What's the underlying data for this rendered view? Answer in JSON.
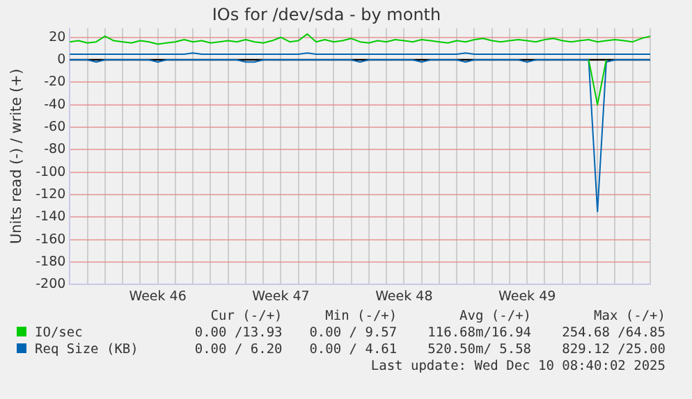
{
  "chart_data": {
    "type": "line",
    "title": "IOs for /dev/sda - by month",
    "ylabel": "Units read (-) / write (+)",
    "categories": [
      null,
      null,
      null,
      null,
      null,
      null,
      null,
      null,
      null,
      null,
      "Week 46",
      null,
      null,
      null,
      null,
      null,
      null,
      null,
      null,
      null,
      null,
      null,
      null,
      null,
      "Week 47",
      null,
      null,
      null,
      null,
      null,
      null,
      null,
      null,
      null,
      null,
      null,
      null,
      null,
      "Week 48",
      null,
      null,
      null,
      null,
      null,
      null,
      null,
      null,
      null,
      null,
      null,
      null,
      null,
      "Week 49",
      null,
      null,
      null,
      null,
      null,
      null,
      null,
      null,
      null,
      null,
      null,
      null,
      null,
      null
    ],
    "series": [
      {
        "name": "IO/sec",
        "color": "#00cc00",
        "values": [
          16,
          17,
          15,
          16,
          21,
          17,
          16,
          15,
          17,
          16,
          14,
          15,
          16,
          18,
          16,
          17,
          15,
          16,
          17,
          16,
          18,
          16,
          15,
          17,
          20,
          16,
          17,
          23,
          16,
          18,
          16,
          17,
          19,
          16,
          15,
          17,
          16,
          18,
          17,
          16,
          18,
          17,
          16,
          15,
          17,
          16,
          18,
          19,
          17,
          16,
          17,
          18,
          17,
          16,
          18,
          19,
          17,
          16,
          17,
          18,
          16,
          17,
          18,
          17,
          16,
          19,
          21
        ]
      },
      {
        "color": "#00cc00",
        "values": [
          null,
          null,
          null,
          null,
          null,
          null,
          null,
          null,
          null,
          null,
          null,
          null,
          null,
          null,
          null,
          null,
          null,
          null,
          null,
          null,
          null,
          null,
          null,
          null,
          null,
          null,
          null,
          null,
          null,
          null,
          null,
          null,
          null,
          null,
          null,
          null,
          null,
          null,
          null,
          null,
          null,
          null,
          null,
          null,
          null,
          null,
          null,
          null,
          null,
          null,
          null,
          null,
          null,
          null,
          null,
          null,
          null,
          null,
          null,
          0,
          -40,
          0,
          null,
          null,
          null,
          null,
          null
        ]
      },
      {
        "name": "Req Size (KB)",
        "color": "#0066b3",
        "values": [
          5,
          5,
          5,
          5,
          5,
          5,
          5,
          5,
          5,
          5,
          5,
          5,
          5,
          5,
          6,
          5,
          5,
          5,
          5,
          5,
          5,
          5,
          5,
          5,
          5,
          5,
          5,
          6,
          5,
          5,
          5,
          5,
          5,
          5,
          5,
          5,
          5,
          5,
          5,
          5,
          5,
          5,
          5,
          5,
          5,
          6,
          5,
          5,
          5,
          5,
          5,
          5,
          5,
          5,
          5,
          5,
          5,
          5,
          5,
          5,
          5,
          5,
          5,
          5,
          5,
          5,
          5
        ]
      },
      {
        "color": "#0066b3",
        "values": [
          0,
          0,
          0,
          -2,
          0,
          0,
          0,
          0,
          0,
          0,
          -2,
          0,
          0,
          0,
          0,
          0,
          0,
          0,
          0,
          0,
          -2,
          -2,
          0,
          0,
          0,
          0,
          0,
          0,
          0,
          0,
          0,
          0,
          0,
          -2,
          0,
          0,
          0,
          0,
          0,
          0,
          -2,
          0,
          0,
          0,
          0,
          -2,
          0,
          0,
          0,
          0,
          0,
          0,
          -2,
          0,
          0,
          0,
          0,
          0,
          0,
          0,
          -135,
          -2,
          0,
          0,
          0,
          0,
          0
        ]
      }
    ],
    "ylim": [
      -200,
      28
    ],
    "yticks": [
      -200,
      -180,
      -160,
      -140,
      -120,
      -100,
      -80,
      -60,
      -40,
      -20,
      0,
      20
    ],
    "grid": true,
    "legend": "bottom",
    "marker": "none",
    "line_style": "solid",
    "ref_lines": [
      {
        "axis": "y",
        "value": 0,
        "color": "#000000"
      }
    ],
    "annotations": [
      "Cur (-/+)",
      "Min (-/+)",
      "Avg (-/+)",
      "Max (-/+)",
      "0.00 /13.93",
      "0.00 / 9.57",
      "116.68m/16.94",
      "254.68 /64.85",
      "0.00 / 6.20",
      "0.00 / 4.61",
      "520.50m/ 5.58",
      "829.12 /25.00",
      "Last update: Wed Dec 10 08:40:02 2025"
    ]
  }
}
